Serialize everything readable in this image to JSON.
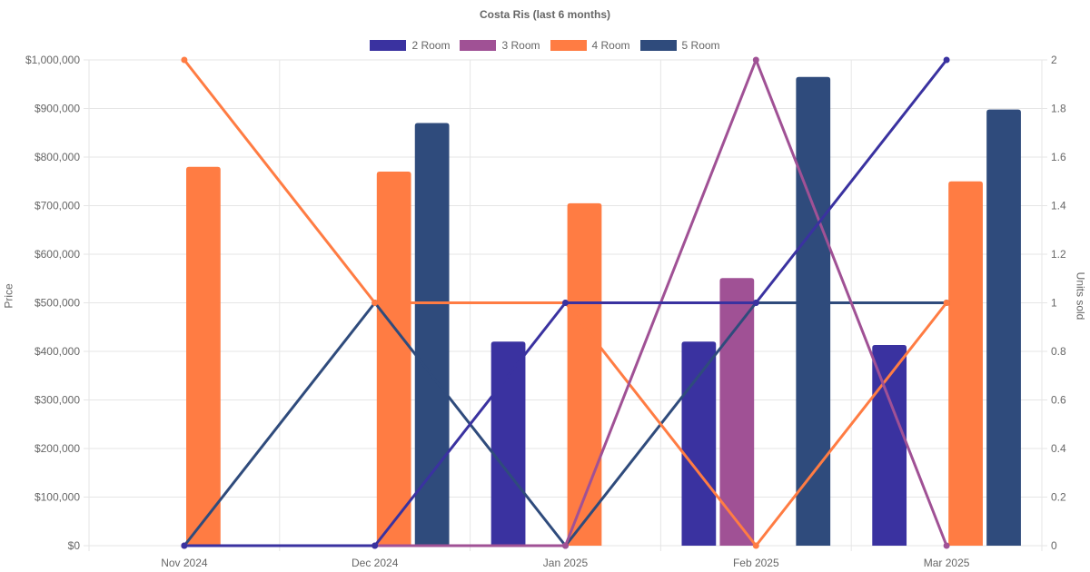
{
  "chart_data": {
    "type": "bar",
    "title": "Costa Ris (last 6 months)",
    "categories": [
      "Nov 2024",
      "Dec 2024",
      "Jan 2025",
      "Feb 2025",
      "Mar 2025"
    ],
    "ylabel": "Price",
    "y2label": "Units sold",
    "ylim": [
      0,
      1000000
    ],
    "y2lim": [
      0,
      2
    ],
    "yticks": [
      "$0",
      "$100,000",
      "$200,000",
      "$300,000",
      "$400,000",
      "$500,000",
      "$600,000",
      "$700,000",
      "$800,000",
      "$900,000",
      "$1,000,000"
    ],
    "y2ticks": [
      "0",
      "0.2",
      "0.4",
      "0.6",
      "0.8",
      "1",
      "1.2",
      "1.4",
      "1.6",
      "1.8",
      "2"
    ],
    "legend_position": "top-center",
    "grid": true,
    "series": [
      {
        "name": "2 Room",
        "color": "#3a32a0",
        "price": [
          null,
          null,
          420000,
          420000,
          413000
        ],
        "units": [
          0,
          0,
          1,
          1,
          2
        ]
      },
      {
        "name": "3 Room",
        "color": "#a05195",
        "price": [
          null,
          null,
          null,
          551000,
          null
        ],
        "units": [
          0,
          0,
          0,
          2,
          0
        ]
      },
      {
        "name": "4 Room",
        "color": "#ff7c43",
        "price": [
          780000,
          770000,
          705000,
          null,
          750000
        ],
        "units": [
          2,
          1,
          1,
          0,
          1
        ]
      },
      {
        "name": "5 Room",
        "color": "#2f4b7c",
        "price": [
          null,
          870000,
          null,
          965000,
          898000
        ],
        "units": [
          0,
          1,
          0,
          1,
          1
        ]
      }
    ]
  }
}
